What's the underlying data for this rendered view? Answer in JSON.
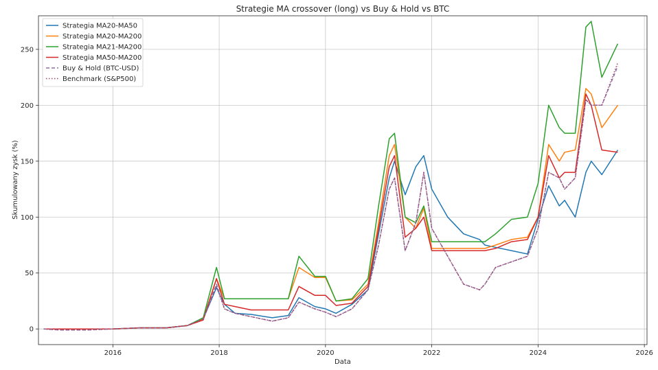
{
  "chart_data": {
    "type": "line",
    "title": "Strategie MA crossover (long) vs Buy & Hold vs BTC",
    "xlabel": "Data",
    "ylabel": "Skumulowany zysk (%)",
    "xlim": [
      2014.6,
      2026.05
    ],
    "ylim": [
      -14,
      280
    ],
    "x_ticks": [
      2016,
      2018,
      2020,
      2022,
      2024,
      2026
    ],
    "y_ticks": [
      0,
      50,
      100,
      150,
      200,
      250
    ],
    "grid": true,
    "legend_position": "upper-left",
    "series": [
      {
        "name": "Strategia MA20-MA50",
        "color": "#1f77b4",
        "style": "solid",
        "x": [
          2014.7,
          2015.5,
          2016.0,
          2016.5,
          2017.0,
          2017.4,
          2017.7,
          2017.95,
          2018.1,
          2018.3,
          2018.6,
          2019.0,
          2019.3,
          2019.5,
          2019.8,
          2020.0,
          2020.2,
          2020.5,
          2020.8,
          2021.0,
          2021.2,
          2021.3,
          2021.5,
          2021.7,
          2021.85,
          2022.0,
          2022.3,
          2022.6,
          2022.9,
          2023.0,
          2023.2,
          2023.5,
          2023.8,
          2024.0,
          2024.2,
          2024.4,
          2024.5,
          2024.7,
          2024.9,
          2025.0,
          2025.2,
          2025.5
        ],
        "y": [
          0,
          0,
          0,
          1,
          1,
          3,
          9,
          37,
          22,
          14,
          13,
          10,
          12,
          28,
          20,
          18,
          14,
          22,
          35,
          85,
          135,
          150,
          120,
          145,
          155,
          125,
          100,
          85,
          80,
          75,
          73,
          70,
          67,
          98,
          128,
          110,
          115,
          100,
          140,
          150,
          138,
          160
        ]
      },
      {
        "name": "Strategia MA20-MA200",
        "color": "#ff7f0e",
        "style": "solid",
        "x": [
          2014.7,
          2015.5,
          2016.0,
          2016.5,
          2017.0,
          2017.4,
          2017.7,
          2017.95,
          2018.1,
          2018.3,
          2018.6,
          2019.0,
          2019.3,
          2019.5,
          2019.8,
          2020.0,
          2020.2,
          2020.5,
          2020.8,
          2021.0,
          2021.2,
          2021.3,
          2021.5,
          2021.7,
          2021.85,
          2022.0,
          2022.3,
          2022.6,
          2022.9,
          2023.0,
          2023.2,
          2023.5,
          2023.8,
          2024.0,
          2024.2,
          2024.4,
          2024.5,
          2024.7,
          2024.9,
          2025.0,
          2025.2,
          2025.5
        ],
        "y": [
          0,
          0,
          0,
          1,
          1,
          3,
          9,
          45,
          27,
          27,
          27,
          27,
          27,
          55,
          46,
          46,
          25,
          26,
          40,
          95,
          155,
          165,
          100,
          90,
          108,
          72,
          72,
          72,
          72,
          72,
          75,
          80,
          82,
          100,
          165,
          150,
          158,
          160,
          215,
          210,
          180,
          200
        ]
      },
      {
        "name": "Strategia MA21-MA200",
        "color": "#2ca02c",
        "style": "solid",
        "x": [
          2014.7,
          2015.5,
          2016.0,
          2016.5,
          2017.0,
          2017.4,
          2017.7,
          2017.95,
          2018.1,
          2018.3,
          2018.6,
          2019.0,
          2019.3,
          2019.5,
          2019.8,
          2020.0,
          2020.2,
          2020.5,
          2020.8,
          2021.0,
          2021.2,
          2021.3,
          2021.5,
          2021.7,
          2021.85,
          2022.0,
          2022.3,
          2022.6,
          2022.9,
          2023.0,
          2023.2,
          2023.5,
          2023.8,
          2024.0,
          2024.2,
          2024.4,
          2024.5,
          2024.7,
          2024.9,
          2025.0,
          2025.2,
          2025.5
        ],
        "y": [
          0,
          0,
          0,
          1,
          1,
          3,
          10,
          55,
          27,
          27,
          27,
          27,
          27,
          65,
          47,
          47,
          25,
          27,
          45,
          110,
          170,
          175,
          100,
          95,
          110,
          78,
          78,
          78,
          78,
          78,
          85,
          98,
          100,
          130,
          200,
          180,
          175,
          175,
          270,
          275,
          225,
          255
        ]
      },
      {
        "name": "Strategia MA50-MA200",
        "color": "#d62728",
        "style": "solid",
        "x": [
          2014.7,
          2015.5,
          2016.0,
          2016.5,
          2017.0,
          2017.4,
          2017.7,
          2017.95,
          2018.1,
          2018.3,
          2018.6,
          2019.0,
          2019.3,
          2019.5,
          2019.8,
          2020.0,
          2020.2,
          2020.5,
          2020.8,
          2021.0,
          2021.2,
          2021.3,
          2021.5,
          2021.7,
          2021.85,
          2022.0,
          2022.3,
          2022.6,
          2022.9,
          2023.0,
          2023.2,
          2023.5,
          2023.8,
          2024.0,
          2024.2,
          2024.4,
          2024.5,
          2024.7,
          2024.9,
          2025.0,
          2025.2,
          2025.5
        ],
        "y": [
          0,
          0,
          0,
          1,
          1,
          3,
          8,
          45,
          22,
          20,
          17,
          17,
          17,
          38,
          30,
          30,
          21,
          23,
          38,
          90,
          145,
          155,
          82,
          90,
          100,
          70,
          70,
          70,
          70,
          70,
          72,
          78,
          80,
          100,
          155,
          135,
          140,
          140,
          210,
          200,
          160,
          158
        ]
      },
      {
        "name": "Buy & Hold (BTC-USD)",
        "color": "#8c6d9f",
        "style": "dashed",
        "x": [
          2014.7,
          2015.0,
          2015.5,
          2016.0,
          2016.5,
          2017.0,
          2017.4,
          2017.7,
          2017.95,
          2018.1,
          2018.3,
          2018.6,
          2019.0,
          2019.3,
          2019.5,
          2019.8,
          2020.0,
          2020.2,
          2020.5,
          2020.8,
          2021.0,
          2021.2,
          2021.3,
          2021.5,
          2021.7,
          2021.85,
          2022.0,
          2022.3,
          2022.6,
          2022.9,
          2023.0,
          2023.2,
          2023.5,
          2023.8,
          2024.0,
          2024.2,
          2024.4,
          2024.5,
          2024.7,
          2024.9,
          2025.0,
          2025.2,
          2025.5
        ],
        "y": [
          0,
          -1,
          -1,
          0,
          1,
          1,
          3,
          9,
          40,
          18,
          14,
          11,
          7,
          10,
          24,
          18,
          15,
          11,
          18,
          35,
          75,
          125,
          135,
          70,
          95,
          140,
          90,
          65,
          40,
          35,
          40,
          55,
          60,
          65,
          90,
          140,
          135,
          125,
          135,
          205,
          200,
          200,
          235
        ]
      },
      {
        "name": "Benchmark (S&P500)",
        "color": "#a0436d",
        "style": "dotted",
        "x": [
          2014.7,
          2015.0,
          2015.5,
          2016.0,
          2016.5,
          2017.0,
          2017.4,
          2017.7,
          2017.95,
          2018.1,
          2018.3,
          2018.6,
          2019.0,
          2019.3,
          2019.5,
          2019.8,
          2020.0,
          2020.2,
          2020.5,
          2020.8,
          2021.0,
          2021.2,
          2021.3,
          2021.5,
          2021.7,
          2021.85,
          2022.0,
          2022.3,
          2022.6,
          2022.9,
          2023.0,
          2023.2,
          2023.5,
          2023.8,
          2024.0,
          2024.2,
          2024.4,
          2024.5,
          2024.7,
          2024.9,
          2025.0,
          2025.2,
          2025.5
        ],
        "y": [
          0,
          -1,
          -1,
          0,
          1,
          1,
          3,
          9,
          38,
          18,
          14,
          11,
          7,
          10,
          24,
          18,
          15,
          11,
          18,
          35,
          75,
          125,
          135,
          70,
          95,
          140,
          90,
          65,
          40,
          35,
          40,
          55,
          60,
          65,
          90,
          140,
          135,
          125,
          135,
          205,
          200,
          200,
          238
        ]
      }
    ]
  }
}
